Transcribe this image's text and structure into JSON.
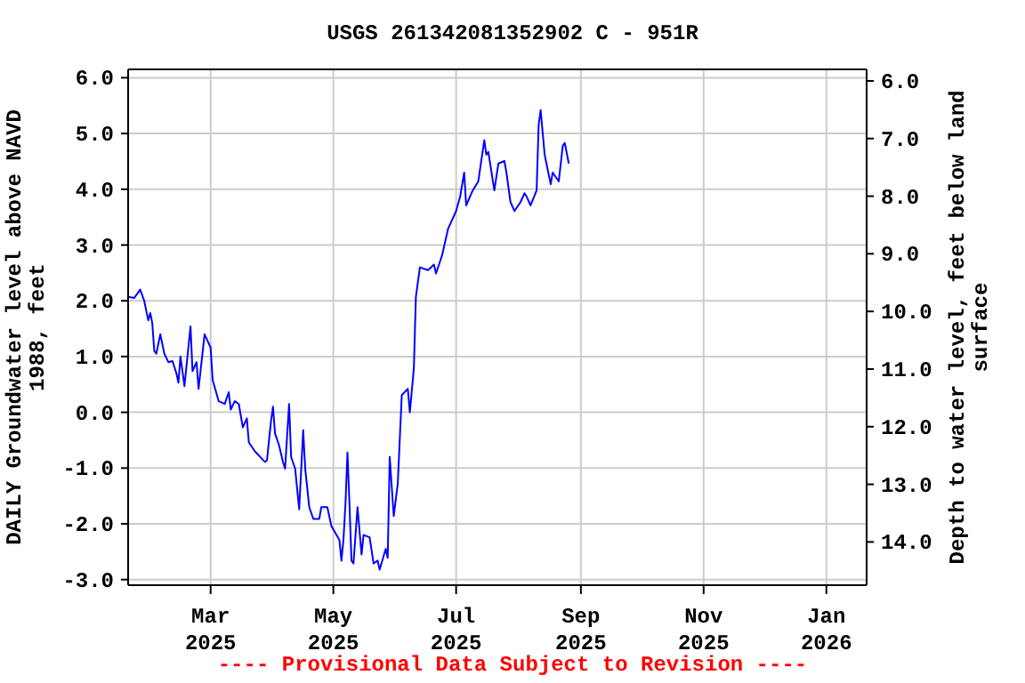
{
  "chart_data": {
    "type": "line",
    "title": "USGS 261342081352902 C - 951R",
    "ylabel": "DAILY Groundwater level above NAVD 1988, feet",
    "y2label": "Depth to water level, feet below land surface",
    "annotations": [
      "---- Provisional Data Subject to Revision ----"
    ],
    "color": "#0000ff",
    "x": [
      "2025-01-19",
      "2025-01-22",
      "2025-01-25",
      "2025-01-27",
      "2025-01-29",
      "2025-01-30",
      "2025-01-31",
      "2025-02-01",
      "2025-02-02",
      "2025-02-04",
      "2025-02-06",
      "2025-02-08",
      "2025-02-10",
      "2025-02-12",
      "2025-02-13",
      "2025-02-14",
      "2025-02-16",
      "2025-02-19",
      "2025-02-20",
      "2025-02-22",
      "2025-02-23",
      "2025-02-26",
      "2025-03-01",
      "2025-03-02",
      "2025-03-05",
      "2025-03-08",
      "2025-03-10",
      "2025-03-11",
      "2025-03-13",
      "2025-03-15",
      "2025-03-17",
      "2025-03-19",
      "2025-03-20",
      "2025-03-23",
      "2025-03-28",
      "2025-03-29",
      "2025-03-31",
      "2025-04-01",
      "2025-04-02",
      "2025-04-04",
      "2025-04-06",
      "2025-04-07",
      "2025-04-09",
      "2025-04-10",
      "2025-04-12",
      "2025-04-14",
      "2025-04-16",
      "2025-04-17",
      "2025-04-19",
      "2025-04-21",
      "2025-04-24",
      "2025-04-25",
      "2025-04-28",
      "2025-04-30",
      "2025-05-04",
      "2025-05-05",
      "2025-05-06",
      "2025-05-07",
      "2025-05-08",
      "2025-05-09",
      "2025-05-10",
      "2025-05-11",
      "2025-05-13",
      "2025-05-15",
      "2025-05-16",
      "2025-05-19",
      "2025-05-21",
      "2025-05-23",
      "2025-05-24",
      "2025-05-27",
      "2025-05-28",
      "2025-05-29",
      "2025-05-31",
      "2025-06-02",
      "2025-06-03",
      "2025-06-04",
      "2025-06-07",
      "2025-06-08",
      "2025-06-10",
      "2025-06-11",
      "2025-06-13",
      "2025-06-17",
      "2025-06-20",
      "2025-06-21",
      "2025-06-24",
      "2025-06-27",
      "2025-07-01",
      "2025-07-03",
      "2025-07-05",
      "2025-07-06",
      "2025-07-09",
      "2025-07-12",
      "2025-07-15",
      "2025-07-16",
      "2025-07-17",
      "2025-07-20",
      "2025-07-22",
      "2025-07-25",
      "2025-07-26",
      "2025-07-28",
      "2025-07-30",
      "2025-08-02",
      "2025-08-04",
      "2025-08-05",
      "2025-08-07",
      "2025-08-10",
      "2025-08-11",
      "2025-08-12",
      "2025-08-14",
      "2025-08-17",
      "2025-08-18",
      "2025-08-21",
      "2025-08-23",
      "2025-08-24",
      "2025-08-26"
    ],
    "values": [
      2.07,
      2.05,
      2.2,
      2.0,
      1.65,
      1.78,
      1.6,
      1.1,
      1.05,
      1.4,
      1.05,
      0.9,
      0.92,
      0.7,
      0.53,
      1.0,
      0.47,
      1.54,
      0.74,
      0.9,
      0.42,
      1.4,
      1.16,
      0.58,
      0.2,
      0.15,
      0.36,
      0.05,
      0.2,
      0.15,
      -0.27,
      -0.11,
      -0.54,
      -0.7,
      -0.89,
      -0.86,
      -0.16,
      0.1,
      -0.38,
      -0.59,
      -0.9,
      -1.01,
      0.15,
      -0.8,
      -1.01,
      -1.74,
      -0.32,
      -1.01,
      -1.7,
      -1.91,
      -1.91,
      -1.7,
      -1.7,
      -2.04,
      -2.29,
      -2.66,
      -2.29,
      -1.65,
      -0.72,
      -1.65,
      -2.66,
      -2.71,
      -1.7,
      -2.55,
      -2.2,
      -2.24,
      -2.71,
      -2.66,
      -2.82,
      -2.45,
      -2.61,
      -0.8,
      -1.86,
      -1.28,
      -0.48,
      0.31,
      0.42,
      0.0,
      0.79,
      2.07,
      2.6,
      2.55,
      2.65,
      2.49,
      2.81,
      3.29,
      3.61,
      3.87,
      4.3,
      3.71,
      3.96,
      4.14,
      4.88,
      4.62,
      4.67,
      3.98,
      4.46,
      4.51,
      4.3,
      3.77,
      3.61,
      3.77,
      3.93,
      3.87,
      3.71,
      3.98,
      5.15,
      5.42,
      4.62,
      4.09,
      4.3,
      4.14,
      4.78,
      4.83,
      4.46
    ],
    "xlim": [
      "2025-01-19",
      "2026-01-21"
    ],
    "xticks": [
      {
        "value": "2025-03-01",
        "label": "Mar\n2025"
      },
      {
        "value": "2025-05-01",
        "label": "May\n2025"
      },
      {
        "value": "2025-07-01",
        "label": "Jul\n2025"
      },
      {
        "value": "2025-09-01",
        "label": "Sep\n2025"
      },
      {
        "value": "2025-11-01",
        "label": "Nov\n2025"
      },
      {
        "value": "2026-01-01",
        "label": "Jan\n2026"
      }
    ],
    "ylim": [
      -3.1,
      6.15
    ],
    "yticks": [
      {
        "value": -3,
        "label": "-3.0"
      },
      {
        "value": -2,
        "label": "-2.0"
      },
      {
        "value": -1,
        "label": "-1.0"
      },
      {
        "value": 0,
        "label": "0.0"
      },
      {
        "value": 1,
        "label": "1.0"
      },
      {
        "value": 2,
        "label": "2.0"
      },
      {
        "value": 3,
        "label": "3.0"
      },
      {
        "value": 4,
        "label": "4.0"
      },
      {
        "value": 5,
        "label": "5.0"
      },
      {
        "value": 6,
        "label": "6.0"
      }
    ],
    "y2lim": [
      14.75,
      5.8
    ],
    "y2ticks": [
      {
        "value": 6,
        "label": "6.0"
      },
      {
        "value": 7,
        "label": "7.0"
      },
      {
        "value": 8,
        "label": "8.0"
      },
      {
        "value": 9,
        "label": "9.0"
      },
      {
        "value": 10,
        "label": "10.0"
      },
      {
        "value": 11,
        "label": "11.0"
      },
      {
        "value": 12,
        "label": "12.0"
      },
      {
        "value": 13,
        "label": "13.0"
      },
      {
        "value": 14,
        "label": "14.0"
      }
    ],
    "grid": true
  }
}
